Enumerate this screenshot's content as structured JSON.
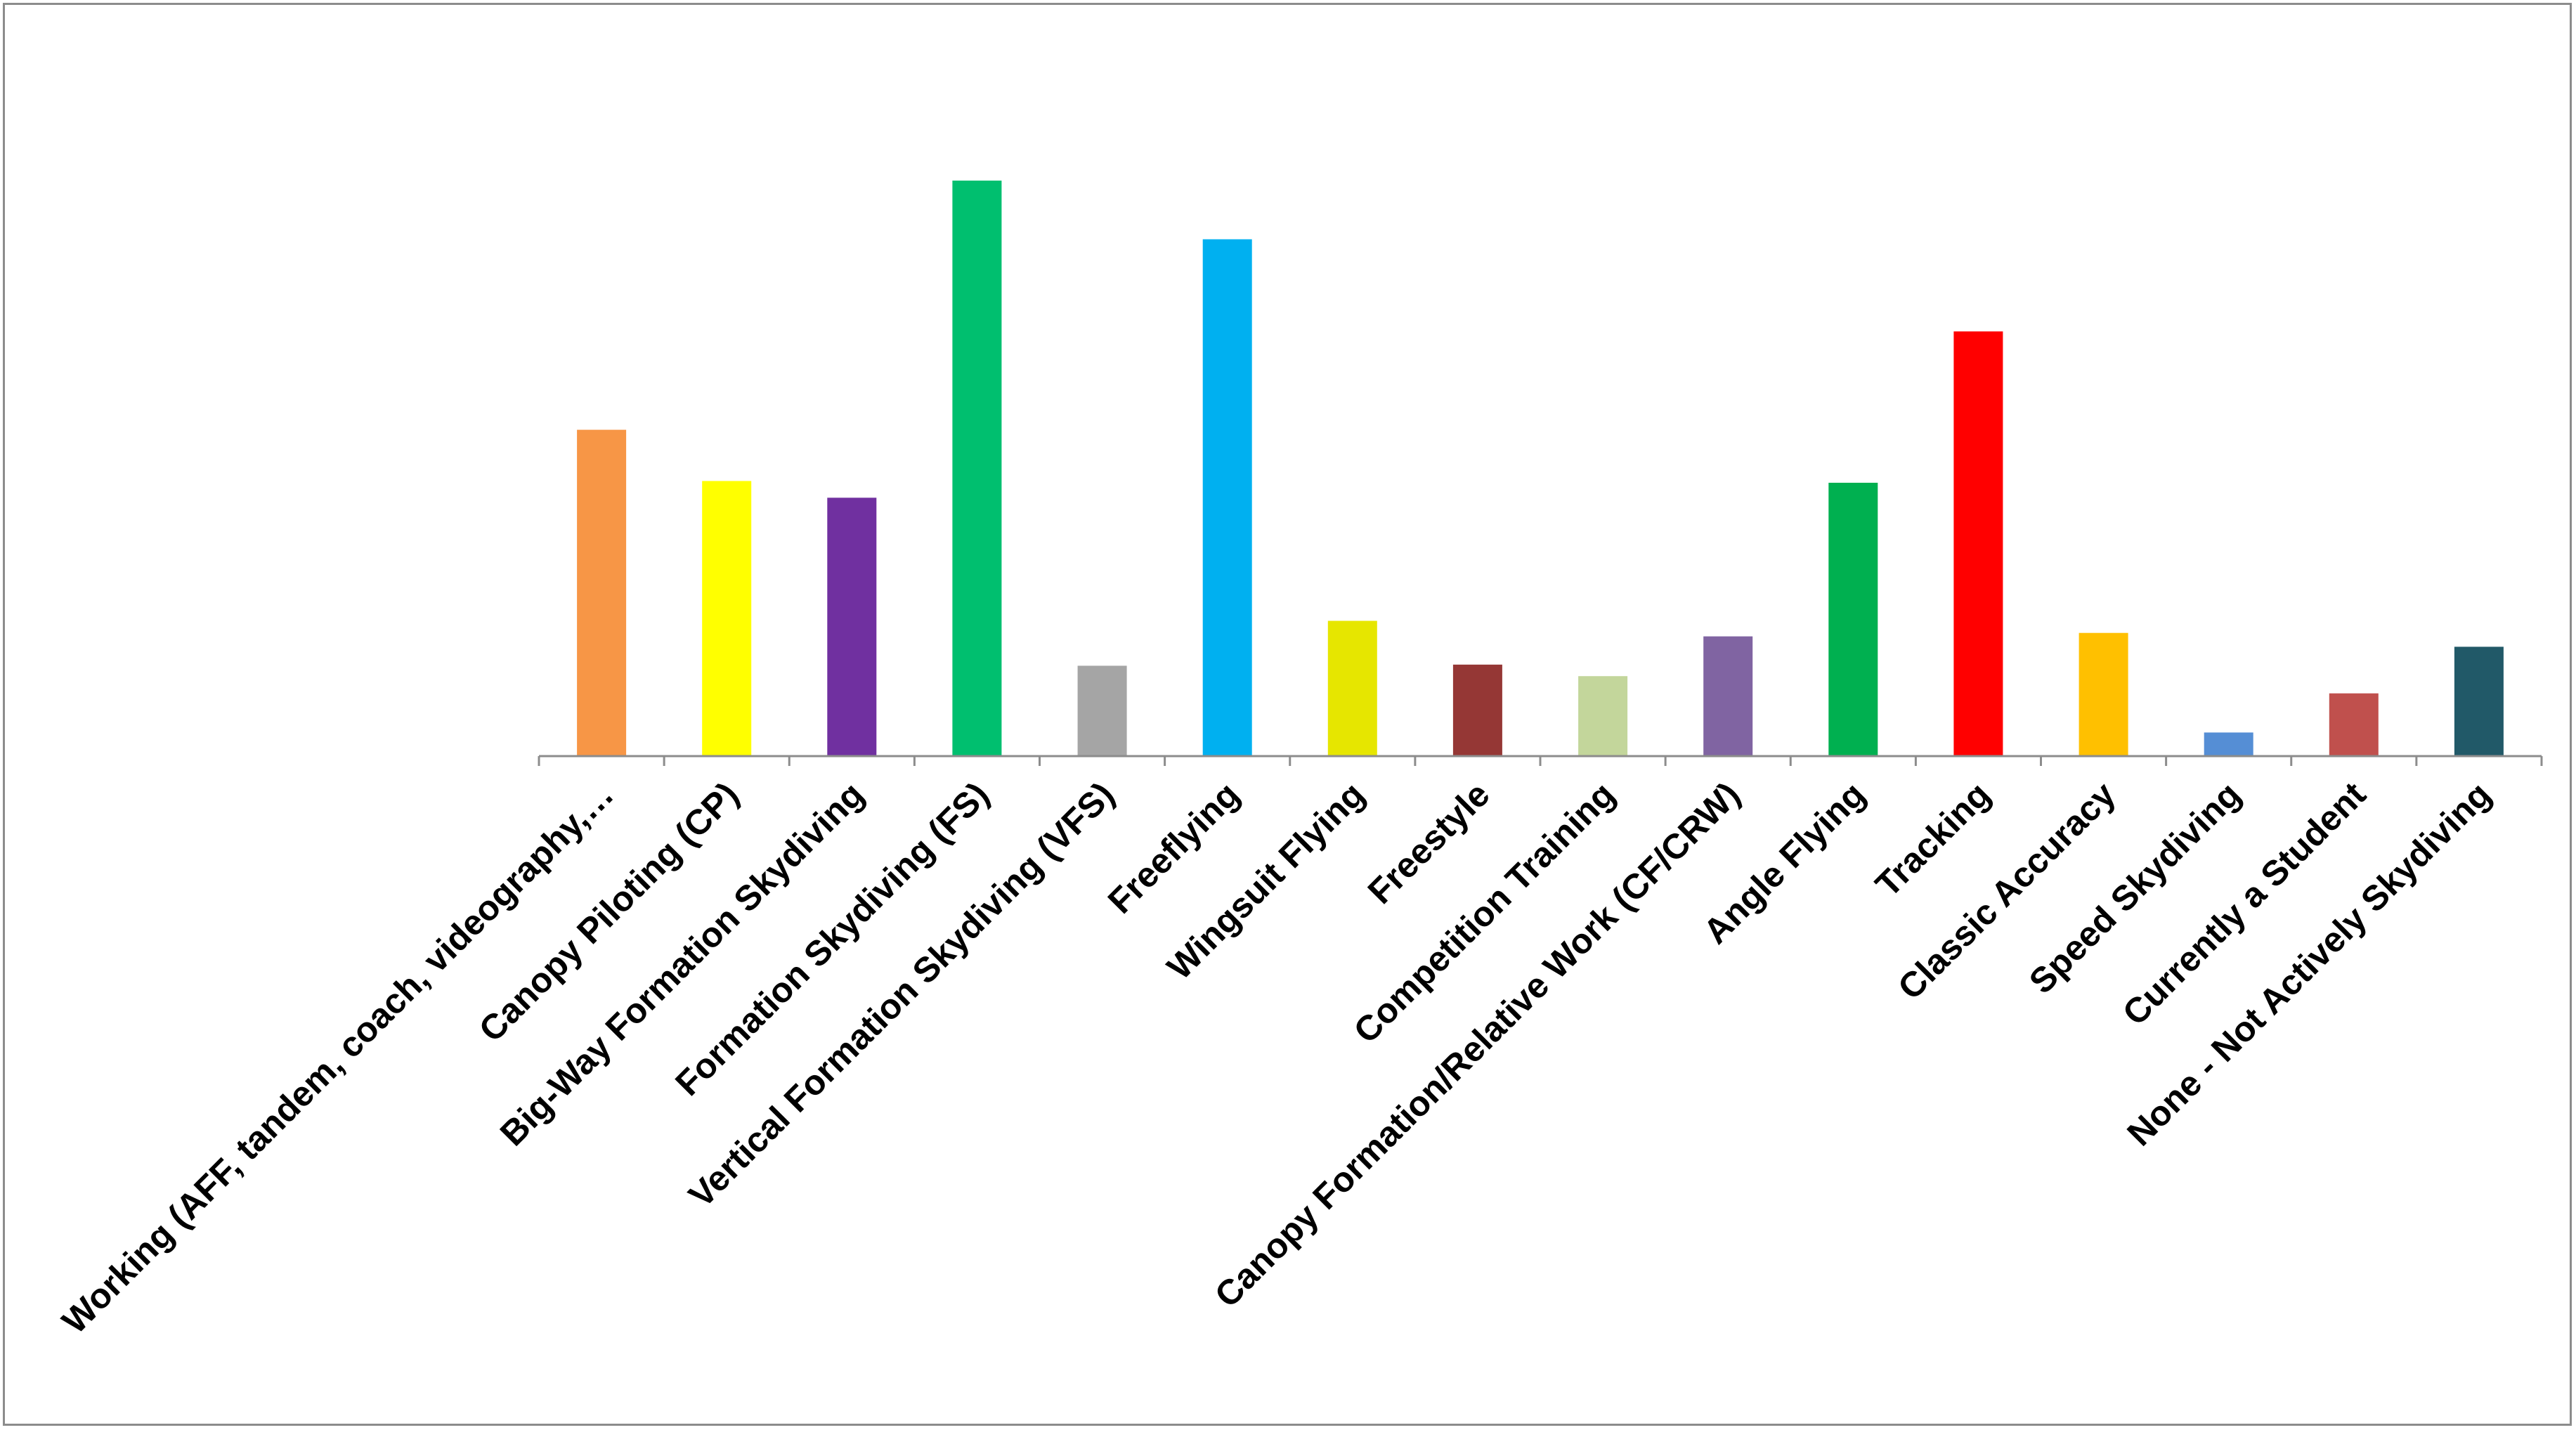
{
  "chart_data": {
    "type": "bar",
    "title": "",
    "xlabel": "",
    "ylabel": "",
    "ylim": [
      0,
      100
    ],
    "grid": false,
    "legend": "none",
    "categories": [
      "Working (AFF, tandem, coach, videography,…",
      "Canopy Piloting (CP)",
      "Big-Way Formation Skydiving",
      "Formation Skydiving (FS)",
      "Vertical Formation Skydiving (VFS)",
      "Freeflying",
      "Wingsuit Flying",
      "Freestyle",
      "Competition Training",
      "Canopy Formation/Relative Work (CF/CRW)",
      "Angle Flying",
      "Tracking",
      "Classic Accuracy",
      "Speed Skydiving",
      "Currently a Student",
      "None - Not Actively Skydiving"
    ],
    "values": [
      56.7,
      47.8,
      44.9,
      100,
      15.7,
      89.8,
      23.5,
      15.9,
      13.9,
      20.8,
      47.5,
      73.8,
      21.4,
      4.1,
      10.9,
      19.0
    ],
    "colors": [
      "#f79646",
      "#ffff00",
      "#7030a0",
      "#00bf6f",
      "#a5a5a5",
      "#00b0f0",
      "#e6e600",
      "#953735",
      "#c3d69b",
      "#8064a2",
      "#00b050",
      "#ff0000",
      "#ffc000",
      "#558ed5",
      "#c0504d",
      "#215968"
    ]
  }
}
